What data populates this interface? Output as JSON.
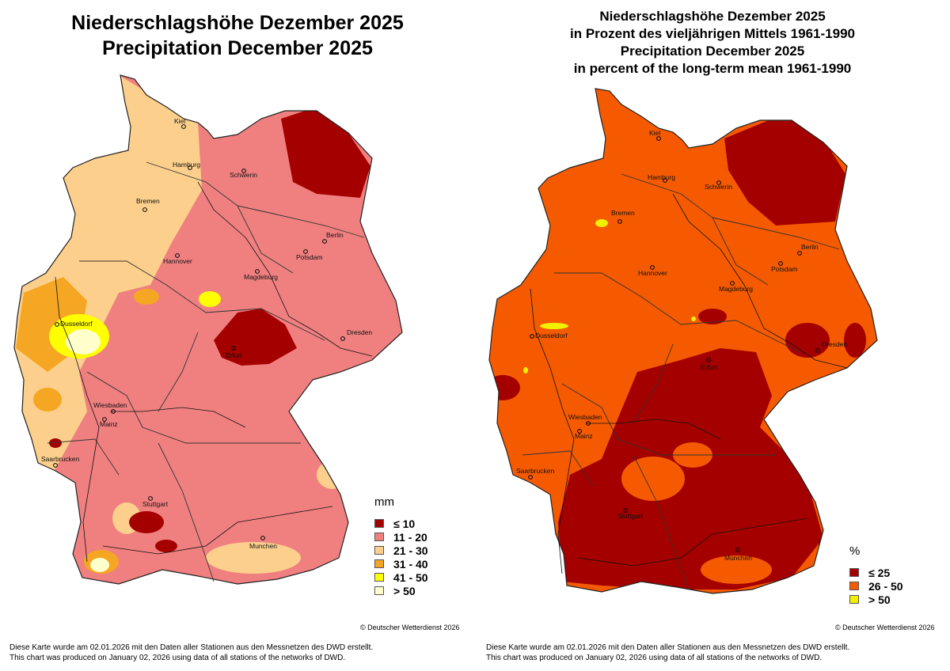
{
  "left": {
    "title_line1": "Niederschlagshöhe Dezember 2025",
    "title_line2": "Precipitation December 2025",
    "legend_unit": "mm",
    "legend": [
      {
        "label": "≤  10",
        "color": "#a50000"
      },
      {
        "label": "11 - 20",
        "color": "#f08080"
      },
      {
        "label": "21 - 30",
        "color": "#fcd08c"
      },
      {
        "label": "31 - 40",
        "color": "#f5a623"
      },
      {
        "label": "41 - 50",
        "color": "#ffff00"
      },
      {
        "label": "> 50",
        "color": "#ffffcc"
      }
    ],
    "copyright": "© Deutscher Wetterdienst 2026",
    "footnote_de": "Diese Karte wurde am 02.01.2026 mit den Daten aller Stationen aus den Messnetzen des DWD erstellt.",
    "footnote_en": "This chart was produced on January 02, 2026 using data of all stations of the networks of DWD."
  },
  "right": {
    "title_line1": "Niederschlagshöhe Dezember 2025",
    "title_line2": "in Prozent des vieljährigen Mittels 1961-1990",
    "title_line3": "Precipitation December 2025",
    "title_line4": "in percent of the long-term mean 1961-1990",
    "legend_unit": "%",
    "legend": [
      {
        "label": "≤  25",
        "color": "#a50000"
      },
      {
        "label": "26 - 50",
        "color": "#f55a00"
      },
      {
        "label": "> 50",
        "color": "#f0f000"
      }
    ],
    "copyright": "© Deutscher Wetterdienst 2026",
    "footnote_de": "Diese Karte wurde am 02.01.2026 mit den Daten aller Stationen aus den Messnetzen des DWD erstellt.",
    "footnote_en": "This chart was produced on January 02, 2026 using data of all stations of the networks of DWD."
  },
  "cities": [
    "Kiel",
    "Hamburg",
    "Schwerin",
    "Bremen",
    "Berlin",
    "Potsdam",
    "Hannover",
    "Magdeburg",
    "Dusseldorf",
    "Dresden",
    "Erfurt",
    "Wiesbaden",
    "Mainz",
    "Saarbrucken",
    "Stuttgart",
    "Munchen"
  ]
}
